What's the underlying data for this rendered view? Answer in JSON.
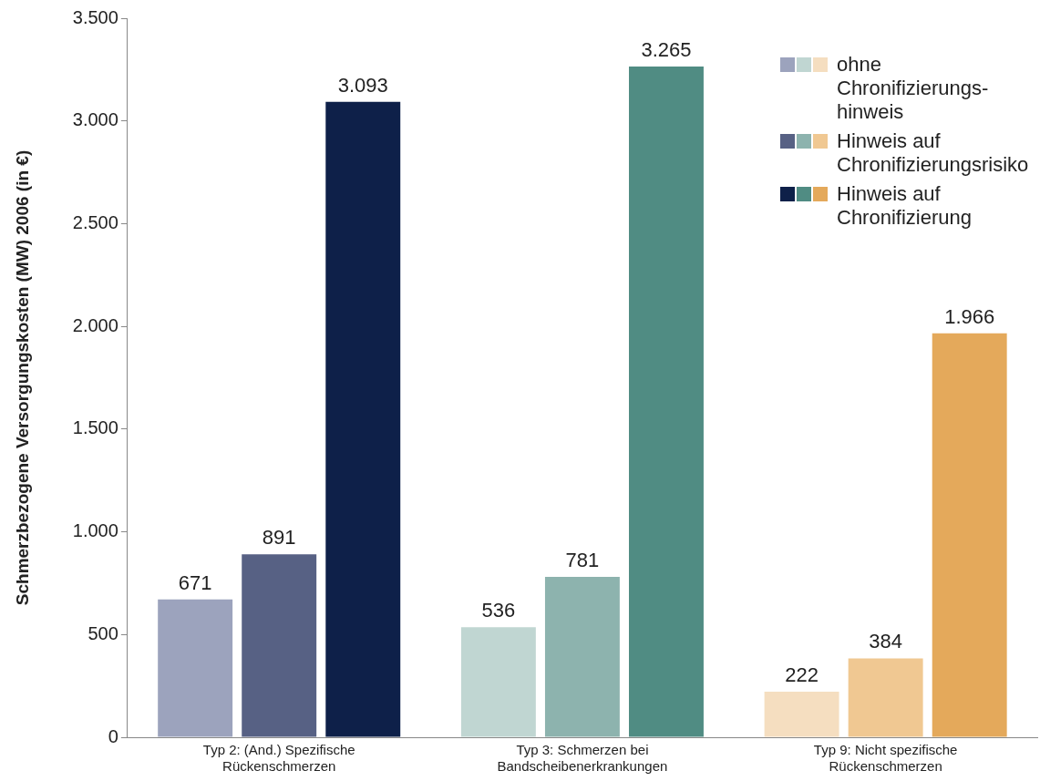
{
  "chart_data": {
    "type": "bar",
    "ylabel": "Schmerzbezogene Versorgungskosten (MW) 2006 (in €)",
    "categories": [
      "Typ 2: (And.) Spezifische Rückenschmerzen",
      "Typ 3: Schmerzen bei Bandscheibenerkrankungen",
      "Typ 9: Nicht spezifische Rückenschmerzen"
    ],
    "series": [
      {
        "name": "ohne Chronifizierungs-hinweis",
        "colors": [
          "#9ca3bd",
          "#c0d6d2",
          "#f5dec0"
        ],
        "values": [
          671,
          536,
          222
        ],
        "value_labels": [
          "671",
          "536",
          "222"
        ]
      },
      {
        "name": "Hinweis auf Chronifizierungsrisiko",
        "colors": [
          "#576184",
          "#8db3ae",
          "#f0c892"
        ],
        "values": [
          891,
          781,
          384
        ],
        "value_labels": [
          "891",
          "781",
          "384"
        ]
      },
      {
        "name": "Hinweis auf Chronifizierung",
        "colors": [
          "#0e2049",
          "#508c83",
          "#e4a95b"
        ],
        "values": [
          3093,
          3265,
          1966
        ],
        "value_labels": [
          "3.093",
          "3.265",
          "1.966"
        ]
      }
    ],
    "ylim": [
      0,
      3500
    ],
    "yticks": [
      0,
      {
        "value": 500,
        "label": "500"
      },
      {
        "value": 1000,
        "label": "1.000"
      },
      {
        "value": 1500,
        "label": "1.500"
      },
      {
        "value": 2000,
        "label": "2.000"
      },
      {
        "value": 2500,
        "label": "2.500"
      },
      {
        "value": 3000,
        "label": "3.000"
      },
      {
        "value": 3500,
        "label": "3.500"
      }
    ],
    "legend": "top right",
    "grid": false
  }
}
